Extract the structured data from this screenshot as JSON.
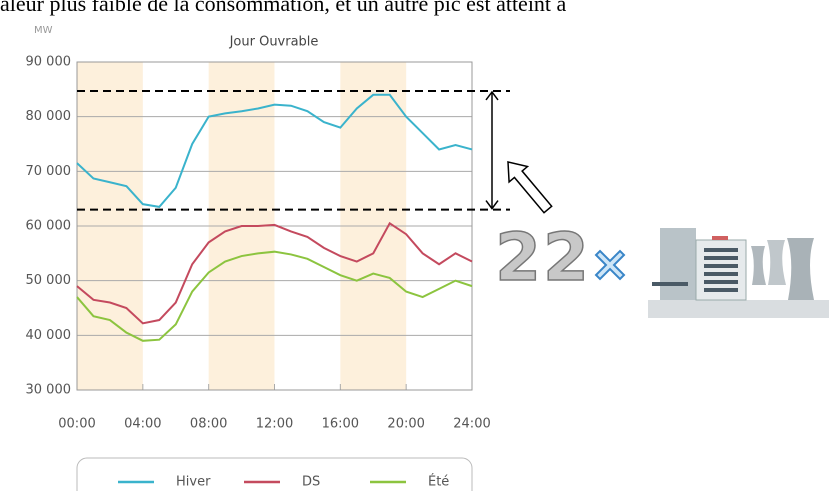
{
  "page_text": "aleur plus faible de la consommation, et un autre pic est atteint à",
  "multiplier": "22",
  "chart_data": {
    "type": "line",
    "title": "Jour Ouvrable",
    "y_unit": "MW",
    "x": [
      0,
      1,
      2,
      3,
      4,
      5,
      6,
      7,
      8,
      9,
      10,
      11,
      12,
      13,
      14,
      15,
      16,
      17,
      18,
      19,
      20,
      21,
      22,
      23,
      24
    ],
    "series": [
      {
        "name": "Hiver",
        "color": "#3ab3cc",
        "values": [
          71500,
          68700,
          68000,
          67300,
          64000,
          63500,
          67000,
          75000,
          80000,
          80600,
          81000,
          81500,
          82200,
          82000,
          81000,
          79000,
          78000,
          81500,
          84000,
          84000,
          80000,
          77000,
          74000,
          74800,
          74000
        ]
      },
      {
        "name": "DS",
        "color": "#c44a5e",
        "values": [
          49000,
          46500,
          46000,
          45000,
          42200,
          42800,
          46000,
          53000,
          57000,
          59000,
          60000,
          60000,
          60200,
          59000,
          58000,
          56000,
          54500,
          53500,
          55000,
          60500,
          58500,
          55000,
          53000,
          55000,
          53500
        ]
      },
      {
        "name": "Été",
        "color": "#8cc43f",
        "values": [
          47000,
          43500,
          42800,
          40500,
          39000,
          39200,
          42000,
          48000,
          51500,
          53500,
          54500,
          55000,
          55300,
          54800,
          54000,
          52500,
          51000,
          50000,
          51300,
          50500,
          48000,
          47000,
          48500,
          50000,
          49000
        ]
      }
    ],
    "xlim": [
      0,
      24
    ],
    "xticks": [
      {
        "value": 0,
        "label": "00:00"
      },
      {
        "value": 4,
        "label": "04:00"
      },
      {
        "value": 8,
        "label": "08:00"
      },
      {
        "value": 12,
        "label": "12:00"
      },
      {
        "value": 16,
        "label": "16:00"
      },
      {
        "value": 20,
        "label": "20:00"
      },
      {
        "value": 24,
        "label": "24:00"
      }
    ],
    "ylim": [
      30000,
      90000
    ],
    "yticks": [
      {
        "value": 30000,
        "label": "30 000"
      },
      {
        "value": 40000,
        "label": "40 000"
      },
      {
        "value": 50000,
        "label": "50 000"
      },
      {
        "value": 60000,
        "label": "60 000"
      },
      {
        "value": 70000,
        "label": "70 000"
      },
      {
        "value": 80000,
        "label": "80 000"
      },
      {
        "value": 90000,
        "label": "90 000"
      }
    ],
    "grid": true,
    "shaded_ranges": [
      [
        0,
        4
      ],
      [
        8,
        12
      ],
      [
        16,
        20
      ]
    ],
    "shade_color": "#fdf0dc",
    "reference_lines": [
      84700,
      63000
    ]
  }
}
